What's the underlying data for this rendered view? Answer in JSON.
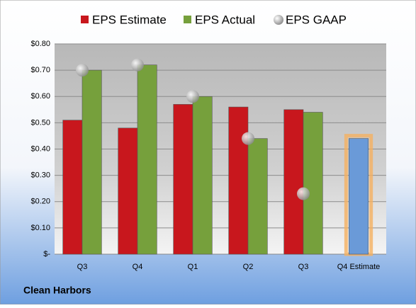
{
  "chart_data": {
    "type": "bar",
    "footer": "Clean Harbors",
    "categories": [
      "Q3",
      "Q4",
      "Q1",
      "Q2",
      "Q3",
      "Q4 Estimate"
    ],
    "series": [
      {
        "name": "EPS Estimate",
        "color": "#c8171d",
        "values": [
          0.51,
          0.48,
          0.57,
          0.56,
          0.55,
          0.44
        ],
        "last_color": "#6a9ad8"
      },
      {
        "name": "EPS Actual",
        "color": "#76a03c",
        "values": [
          0.7,
          0.72,
          0.6,
          0.44,
          0.54,
          null
        ]
      },
      {
        "name": "EPS GAAP",
        "color": "#a8a8a8",
        "marker": "circle",
        "values": [
          0.7,
          0.72,
          0.6,
          0.44,
          0.23,
          null
        ]
      }
    ],
    "ylim": [
      0,
      0.8
    ],
    "yticks": [
      {
        "value": 0,
        "label": "$-"
      },
      {
        "value": 0.1,
        "label": "$0.10"
      },
      {
        "value": 0.2,
        "label": "$0.20"
      },
      {
        "value": 0.3,
        "label": "$0.30"
      },
      {
        "value": 0.4,
        "label": "$0.40"
      },
      {
        "value": 0.5,
        "label": "$0.50"
      },
      {
        "value": 0.6,
        "label": "$0.60"
      },
      {
        "value": 0.7,
        "label": "$0.70"
      },
      {
        "value": 0.8,
        "label": "$0.80"
      }
    ],
    "grid": true,
    "legend": "top"
  }
}
